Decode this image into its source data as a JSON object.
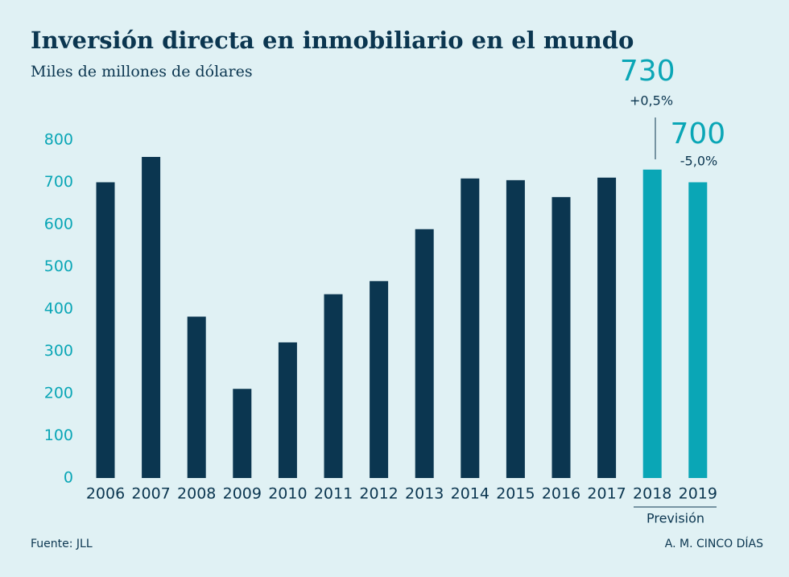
{
  "chart_data": {
    "type": "bar",
    "title": "Inversión directa en inmobiliario en el mundo",
    "subtitle": "Miles de millones de dólares",
    "categories": [
      "2006",
      "2007",
      "2008",
      "2009",
      "2010",
      "2011",
      "2012",
      "2013",
      "2014",
      "2015",
      "2016",
      "2017",
      "2018",
      "2019"
    ],
    "values": [
      700,
      760,
      382,
      211,
      321,
      435,
      466,
      589,
      709,
      705,
      665,
      711,
      730,
      700
    ],
    "value_labels": [
      null,
      null,
      null,
      null,
      null,
      null,
      null,
      null,
      null,
      null,
      null,
      null,
      "730",
      "700"
    ],
    "colors": [
      "#0b3650",
      "#0b3650",
      "#0b3650",
      "#0b3650",
      "#0b3650",
      "#0b3650",
      "#0b3650",
      "#0b3650",
      "#0b3650",
      "#0b3650",
      "#0b3650",
      "#0b3650",
      "#0aa6b6",
      "#0aa6b6"
    ],
    "annotations": [
      "+0,5%",
      "-5,0%"
    ],
    "forecast_label": "Previsión",
    "source": "Fuente: JLL",
    "credit": "A. M. CINCO DÍAS",
    "ylim": [
      0,
      800
    ],
    "yticks": [
      0,
      100,
      200,
      300,
      400,
      500,
      600,
      700,
      800
    ],
    "grid": false
  }
}
